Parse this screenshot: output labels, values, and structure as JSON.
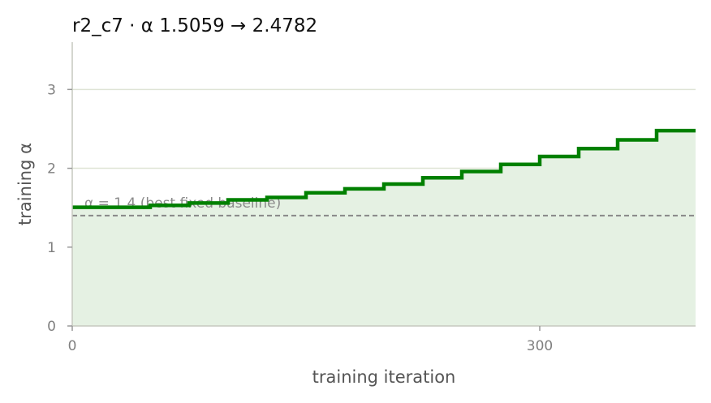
{
  "chart_data": {
    "type": "line",
    "title": "r2_c7   ·   α 1.5059 → 2.4782",
    "xlabel": "training iteration",
    "ylabel": "training α",
    "xlim": [
      0,
      400
    ],
    "ylim": [
      0,
      3.6
    ],
    "x_ticks": [
      {
        "value": 0,
        "label": "0"
      },
      {
        "value": 300,
        "label": "300"
      }
    ],
    "y_ticks": [
      {
        "value": 0,
        "label": "0"
      },
      {
        "value": 1,
        "label": "1"
      },
      {
        "value": 2,
        "label": "2"
      },
      {
        "value": 3,
        "label": "3"
      }
    ],
    "grid": "horizontal",
    "step": "post",
    "series": [
      {
        "x": [
          0,
          25,
          50,
          75,
          100,
          125,
          150,
          175,
          200,
          225,
          250,
          275,
          300,
          325,
          350,
          375,
          400
        ],
        "y": [
          1.5059,
          1.5059,
          1.53,
          1.56,
          1.6,
          1.63,
          1.69,
          1.74,
          1.8,
          1.88,
          1.96,
          2.05,
          2.15,
          2.25,
          2.36,
          2.4782,
          2.4782
        ],
        "color": "#008000",
        "fill": "#e5f1e3"
      }
    ],
    "reference_line": {
      "y": 1.4,
      "label": "α = 1.4 (best fixed baseline)",
      "color": "#888888",
      "style": "dashed"
    }
  }
}
